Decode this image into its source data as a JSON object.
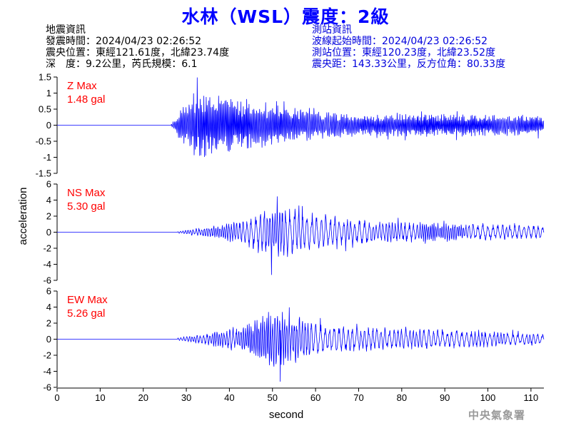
{
  "title": "水林（WSL）震度：2級",
  "event_info": {
    "heading": "地震資訊",
    "origin_time": "發震時間：2024/04/23 02:26:52",
    "epicenter": "震央位置：東經121.61度，北緯23.74度",
    "depth_magnitude": "深　度：9.2公里，芮氏規模：6.1"
  },
  "station_info": {
    "heading": "測站資訊",
    "wave_start": "波線起始時間：2024/04/23 02:26:52",
    "location": "測站位置：東經120.23度，北緯23.52度",
    "distance": "震央距：143.33公里，反方位角：80.33度"
  },
  "footer_mark": "中央氣象署",
  "colors": {
    "trace": "#0000ff",
    "max_label": "#ff0000",
    "title": "#0000ff",
    "station_text": "#0000dd"
  },
  "chart_data": {
    "type": "line",
    "xlabel": "second",
    "ylabel": "acceleration",
    "xlim": [
      0,
      113
    ],
    "xticks": [
      0,
      10,
      20,
      30,
      40,
      50,
      60,
      70,
      80,
      90,
      100,
      110
    ],
    "panels": [
      {
        "name": "Z",
        "max_label": "Z Max",
        "max_value": "1.48 gal",
        "ylim": [
          -1.5,
          1.5
        ],
        "yticks": [
          1.5,
          1,
          0.5,
          0,
          -0.5,
          -1,
          -1.5
        ],
        "onset_s": 26.5,
        "peak_t": 32.5,
        "peak_amp": 1.48,
        "envelope": [
          [
            0,
            0
          ],
          [
            26.5,
            0.03
          ],
          [
            28,
            0.35
          ],
          [
            30,
            0.85
          ],
          [
            32,
            1.05
          ],
          [
            34,
            1.15
          ],
          [
            36,
            1.0
          ],
          [
            38,
            0.95
          ],
          [
            40,
            0.85
          ],
          [
            44,
            0.8
          ],
          [
            48,
            0.7
          ],
          [
            52,
            0.6
          ],
          [
            56,
            0.55
          ],
          [
            60,
            0.45
          ],
          [
            70,
            0.35
          ],
          [
            80,
            0.35
          ],
          [
            90,
            0.35
          ],
          [
            100,
            0.35
          ],
          [
            113,
            0.3
          ]
        ]
      },
      {
        "name": "NS",
        "max_label": "NS Max",
        "max_value": "5.30 gal",
        "ylim": [
          -6,
          6
        ],
        "yticks": [
          6,
          4,
          2,
          0,
          -2,
          -4,
          -6
        ],
        "onset_s": 28,
        "peak_t": 49.8,
        "peak_amp": -5.3,
        "envelope": [
          [
            0,
            0
          ],
          [
            28,
            0.1
          ],
          [
            32,
            0.5
          ],
          [
            36,
            0.8
          ],
          [
            40,
            1.2
          ],
          [
            44,
            1.6
          ],
          [
            48,
            3.3
          ],
          [
            50,
            3.6
          ],
          [
            53,
            3.2
          ],
          [
            56,
            3.0
          ],
          [
            60,
            2.3
          ],
          [
            64,
            2.0
          ],
          [
            70,
            1.5
          ],
          [
            80,
            1.3
          ],
          [
            90,
            1.2
          ],
          [
            100,
            1.1
          ],
          [
            113,
            0.8
          ]
        ]
      },
      {
        "name": "EW",
        "max_label": "EW Max",
        "max_value": "5.26 gal",
        "ylim": [
          -6,
          6
        ],
        "yticks": [
          6,
          4,
          2,
          0,
          -2,
          -4,
          -6
        ],
        "onset_s": 28,
        "peak_t": 51.8,
        "peak_amp": -5.26,
        "envelope": [
          [
            0,
            0
          ],
          [
            28,
            0.15
          ],
          [
            32,
            0.5
          ],
          [
            36,
            0.9
          ],
          [
            40,
            1.4
          ],
          [
            44,
            1.8
          ],
          [
            48,
            3.2
          ],
          [
            50,
            3.8
          ],
          [
            52,
            3.5
          ],
          [
            55,
            3.0
          ],
          [
            60,
            2.3
          ],
          [
            64,
            1.9
          ],
          [
            70,
            1.6
          ],
          [
            80,
            1.4
          ],
          [
            90,
            1.2
          ],
          [
            100,
            1.0
          ],
          [
            113,
            0.7
          ]
        ]
      }
    ]
  }
}
